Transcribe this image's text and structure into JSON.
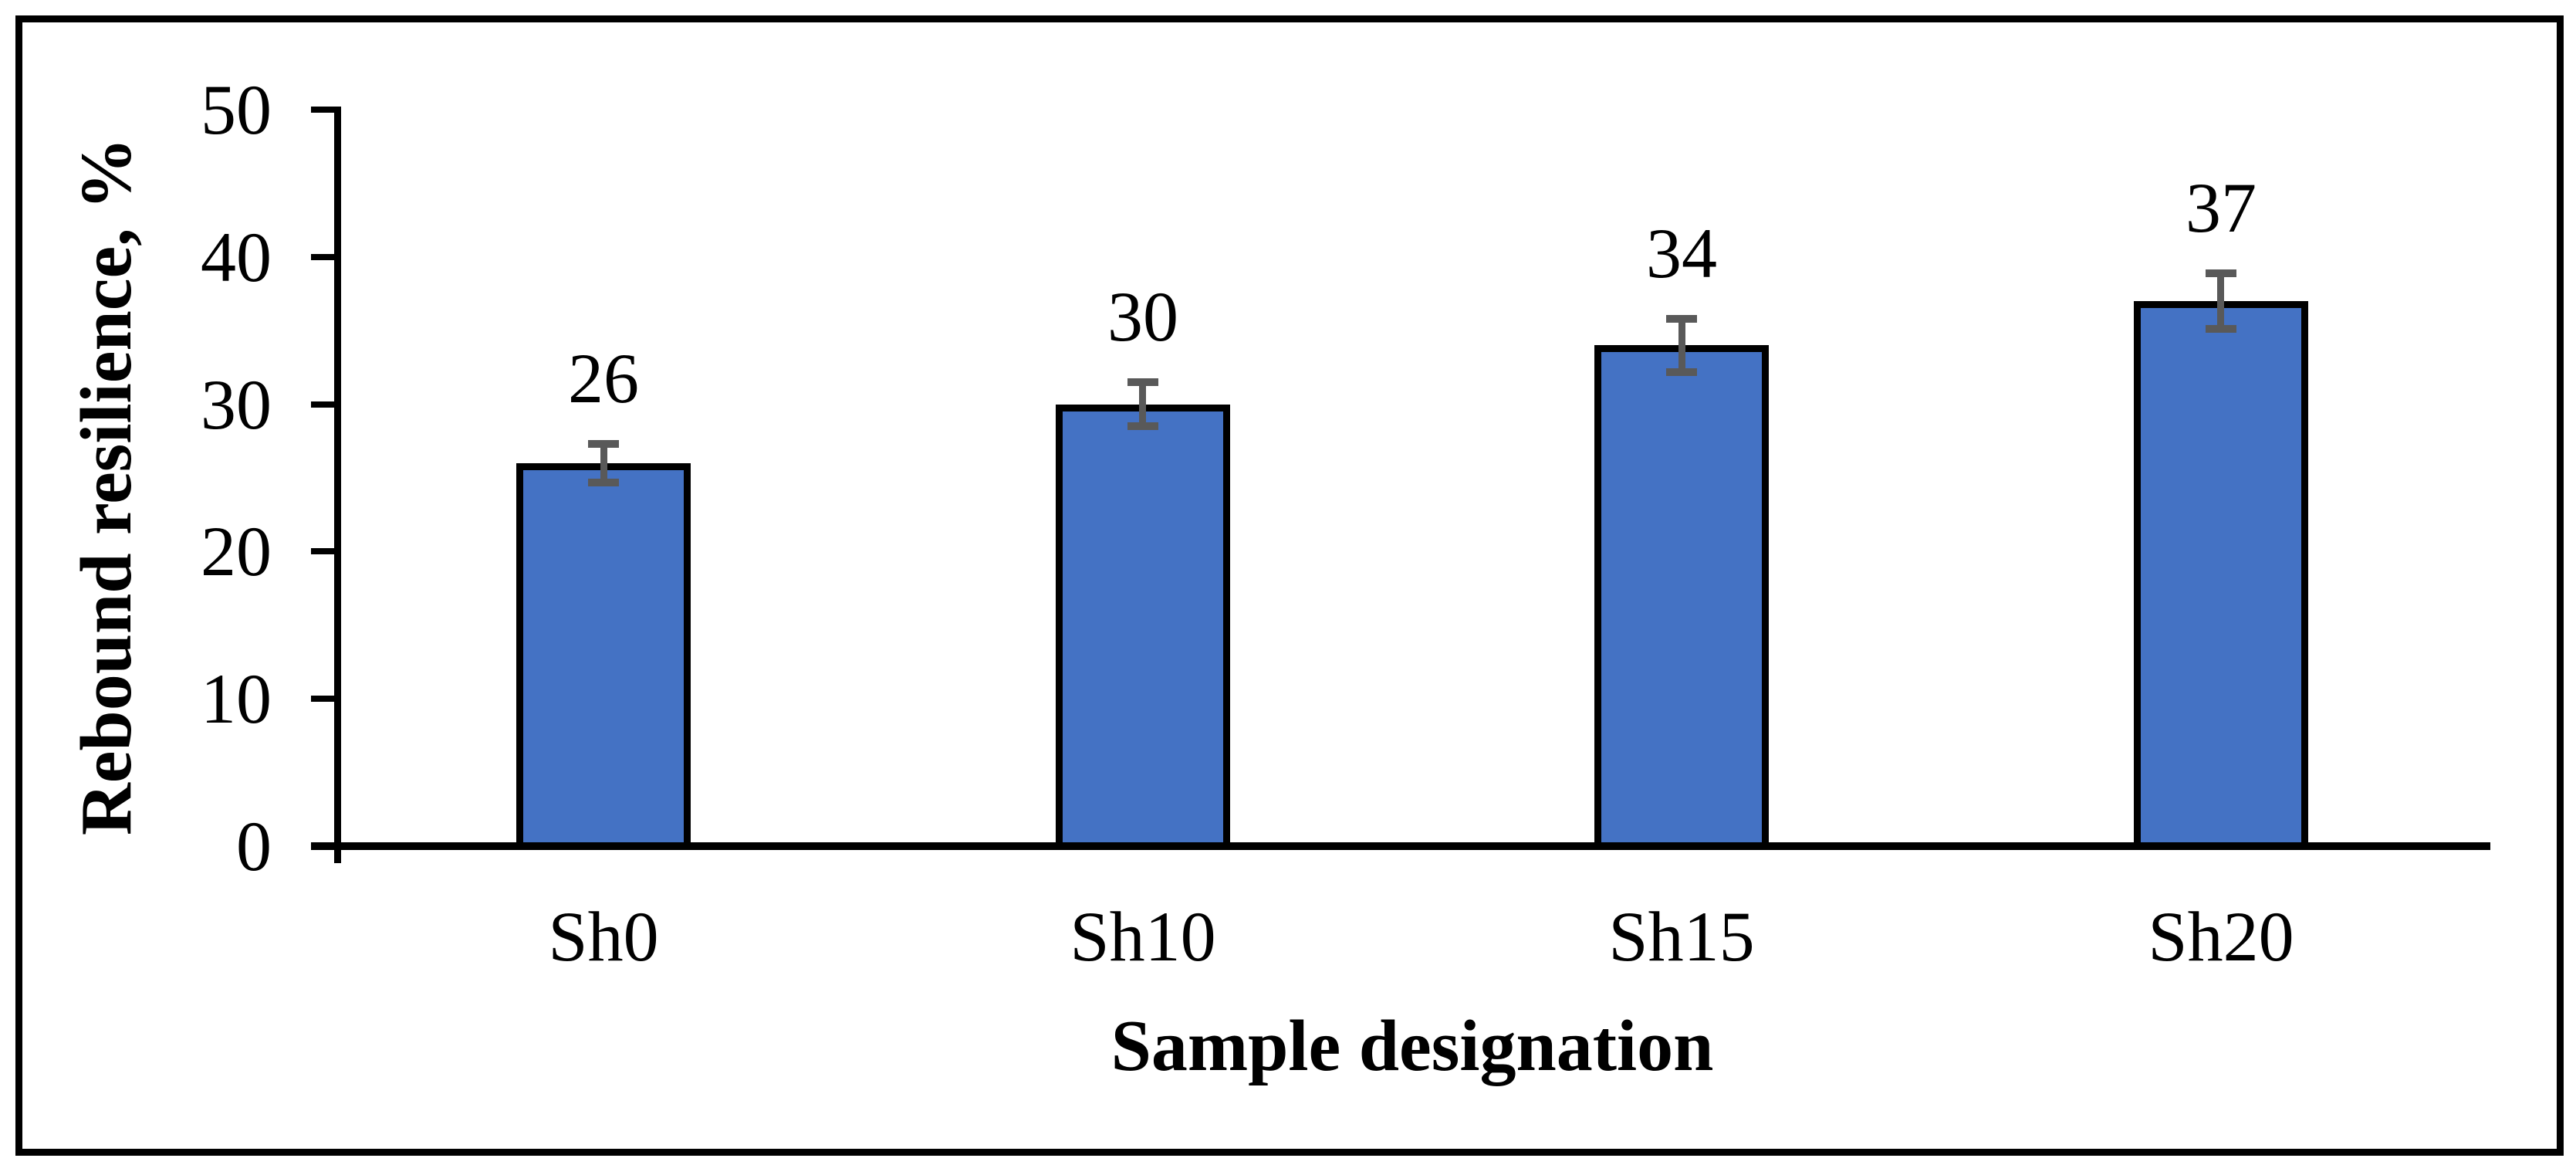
{
  "chart_data": {
    "type": "bar",
    "title": "",
    "categories": [
      "Sh0",
      "Sh10",
      "Sh15",
      "Sh20"
    ],
    "values": [
      26,
      30,
      34,
      37
    ],
    "data_labels": [
      "26",
      "30",
      "34",
      "37"
    ],
    "error_bars": [
      1.3,
      1.5,
      1.8,
      1.9
    ],
    "xlabel": "Sample designation",
    "ylabel": "Rebound resilience, %",
    "yticks": [
      0,
      10,
      20,
      30,
      40,
      50
    ],
    "ylim": [
      0,
      50
    ],
    "grid": false,
    "legend": false,
    "colors": {
      "bar_fill": "#4472C4",
      "bar_border": "#000000",
      "error_bar": "#595959",
      "axis": "#000000",
      "text": "#000000",
      "figure_border": "#000000",
      "background": "#FFFFFF"
    }
  }
}
